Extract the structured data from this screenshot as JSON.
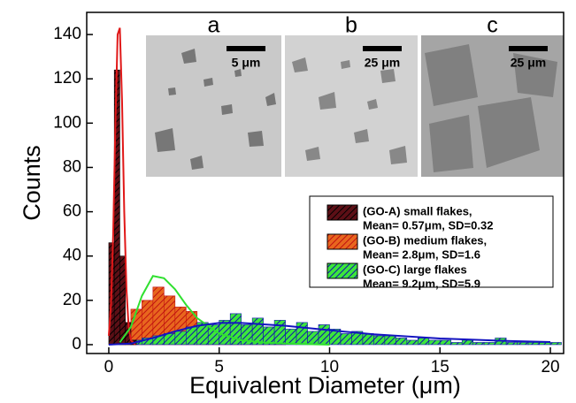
{
  "chart_data": {
    "type": "histogram",
    "x_label": "Equivalent Diameter (μm)",
    "y_label": "Counts",
    "xlim": [
      -1,
      20.6
    ],
    "ylim": [
      -4,
      150
    ],
    "xticks": [
      0,
      5,
      10,
      15,
      20
    ],
    "yticks": [
      0,
      20,
      40,
      60,
      80,
      100,
      120,
      140
    ],
    "legend_position": "center right",
    "series": [
      {
        "name": "(GO-A) small flakes,",
        "stats": "Mean= 0.57μm, SD=0.32",
        "color": "#5c0f16",
        "hatch_color": "#000000",
        "fit_color": "#e01818",
        "bins": [
          0,
          0.25,
          0.5,
          0.75,
          1.0,
          1.25
        ],
        "values": [
          46,
          124,
          40,
          10,
          2
        ],
        "fit": {
          "x": [
            0,
            0.1,
            0.2,
            0.3,
            0.4,
            0.5,
            0.6,
            0.7,
            0.8,
            0.9,
            1.0,
            1.2
          ],
          "values": [
            4,
            18,
            50,
            100,
            140,
            143,
            110,
            60,
            25,
            8,
            2,
            0
          ]
        }
      },
      {
        "name": "(GO-B) medium flakes,",
        "stats": "Mean= 2.8μm,  SD=1.6",
        "color": "#e8661e",
        "hatch_color": "#c01010",
        "fit_color": "#30e030",
        "bins": [
          0.5,
          1,
          1.5,
          2,
          2.5,
          3,
          3.5,
          4,
          4.5,
          5,
          5.5,
          6,
          6.5,
          7,
          7.5,
          8
        ],
        "values": [
          10,
          16,
          20,
          26,
          22,
          17,
          15,
          10,
          8,
          6,
          4,
          3,
          2,
          2,
          1
        ],
        "fit": {
          "x": [
            0.5,
            1,
            1.5,
            2,
            2.5,
            3,
            3.5,
            4,
            5,
            6,
            7,
            8,
            10
          ],
          "values": [
            1,
            8,
            22,
            31,
            30,
            25,
            18,
            12,
            5,
            2,
            1,
            0.5,
            0
          ]
        }
      },
      {
        "name": "(GO-C) large flakes",
        "stats": "Mean= 9.2μm,  SD=5.9",
        "color": "#3ce63c",
        "hatch_color": "#1010b0",
        "fit_color": "#1414c0",
        "bins": [
          1,
          1.5,
          2,
          2.5,
          3,
          3.5,
          4,
          4.5,
          5,
          5.5,
          6,
          6.5,
          7,
          7.5,
          8,
          8.5,
          9,
          9.5,
          10,
          10.5,
          11,
          11.5,
          12,
          12.5,
          13,
          13.5,
          14,
          14.5,
          15,
          15.5,
          16,
          16.5,
          17,
          17.5,
          18,
          18.5,
          19,
          19.5,
          20,
          20.5
        ],
        "values": [
          2,
          3,
          4,
          5,
          6,
          8,
          10,
          9,
          11,
          14,
          9,
          12,
          8,
          11,
          7,
          10,
          6,
          9,
          7,
          5,
          6,
          5,
          4,
          4,
          3,
          2,
          3,
          2,
          2,
          1,
          2,
          1,
          1,
          3,
          1,
          1,
          1,
          1,
          1
        ],
        "fit": {
          "x": [
            0,
            1,
            2,
            3,
            4,
            5,
            6,
            8,
            10,
            12,
            15,
            18,
            20
          ],
          "values": [
            0,
            0.5,
            3,
            6,
            8.5,
            9.8,
            9.8,
            8.5,
            6.5,
            4.7,
            2.8,
            1.7,
            1.2
          ]
        }
      }
    ],
    "insets": [
      {
        "label": "a",
        "scale": "5 μm"
      },
      {
        "label": "b",
        "scale": "25 μm"
      },
      {
        "label": "c",
        "scale": "25 μm"
      }
    ]
  }
}
